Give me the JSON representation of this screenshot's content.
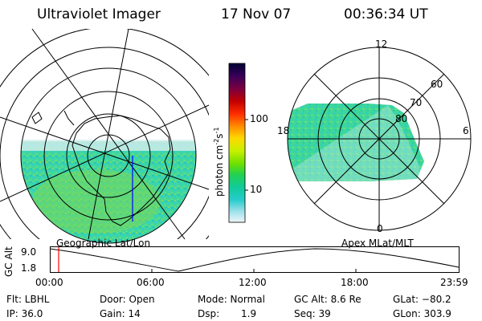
{
  "header": {
    "title": "Ultraviolet Imager",
    "date": "17 Nov 07",
    "time": "00:36:34 UT"
  },
  "colorbar": {
    "label": "photon cm-2s-1",
    "ticks": [
      "100",
      "10"
    ],
    "colors": [
      "#000033",
      "#220044",
      "#5a0066",
      "#8a0022",
      "#c40000",
      "#ff2a00",
      "#ff7a00",
      "#ffbb00",
      "#ffe600",
      "#d8f000",
      "#9be800",
      "#55d800",
      "#1ccf44",
      "#10cc8c",
      "#22ccc8",
      "#88e0e8",
      "#e0f0f4"
    ]
  },
  "left_map": {
    "caption": "Geographic Lat/Lon"
  },
  "right_map": {
    "caption": "Apex MLat/MLT",
    "mlt_labels": [
      "12",
      "18",
      "6",
      "0"
    ],
    "lat_labels": [
      "60",
      "70",
      "80"
    ]
  },
  "timeline": {
    "ylabel": "GC Alt",
    "yticks": [
      "9.0",
      "1.8"
    ],
    "xticks": [
      "00:00",
      "06:00",
      "12:00",
      "18:00",
      "23:59"
    ]
  },
  "info": {
    "filter": "Flt: LBHL",
    "ip": "IP: 36.0",
    "door": "Door: Open",
    "gain": "Gain: 14",
    "mode": "Mode: Normal",
    "dsp_label": "Dsp:",
    "dsp_value": "1.9",
    "gc_alt": "GC Alt: 8.6 Re",
    "seq": "Seq: 39",
    "glat": "GLat: −80.2",
    "glon": "GLon: 303.9"
  },
  "accent_colors": {
    "data_fill": "#3fd6a0",
    "time_marker": "#ff0000"
  }
}
